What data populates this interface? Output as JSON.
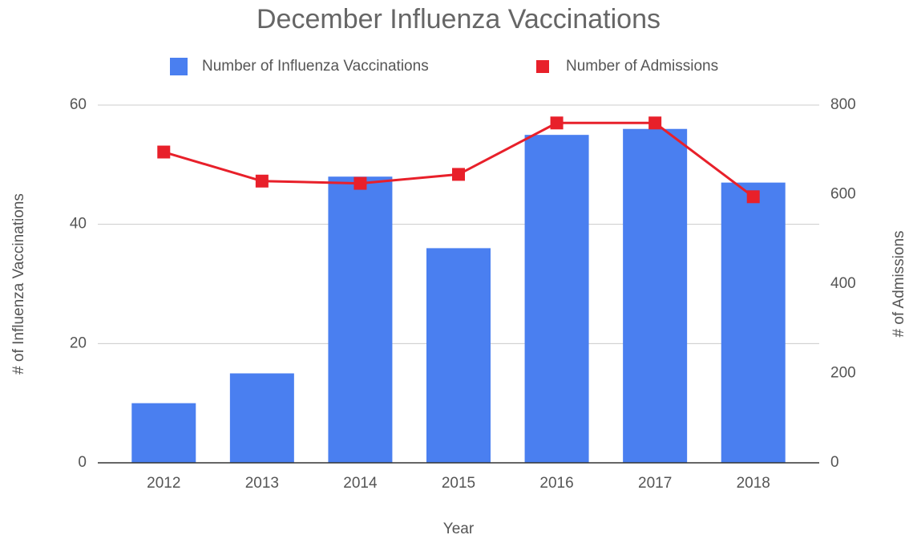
{
  "chart_data": {
    "type": "bar",
    "title": "December Influenza Vaccinations",
    "x_label": "Year",
    "y_label": "# of Influenza Vaccinations",
    "y2_label": "# of Admissions",
    "categories": [
      "2012",
      "2013",
      "2014",
      "2015",
      "2016",
      "2017",
      "2018"
    ],
    "series": [
      {
        "name": "Number of Influenza Vaccinations",
        "color": "#4a7ff0",
        "type": "bar",
        "values": [
          10,
          15,
          48,
          36,
          55,
          56,
          47
        ]
      },
      {
        "name": "Number of Admissions",
        "color": "#e8202a",
        "type": "line",
        "axis": "y2",
        "values": [
          695,
          630,
          625,
          645,
          760,
          760,
          595
        ]
      }
    ],
    "ylim": [
      0,
      60
    ],
    "yticks": [
      0,
      20,
      40,
      60
    ],
    "y2lim": [
      0,
      800
    ],
    "y2ticks": [
      0,
      200,
      400,
      600,
      800
    ],
    "grid": true,
    "legend": "top"
  }
}
